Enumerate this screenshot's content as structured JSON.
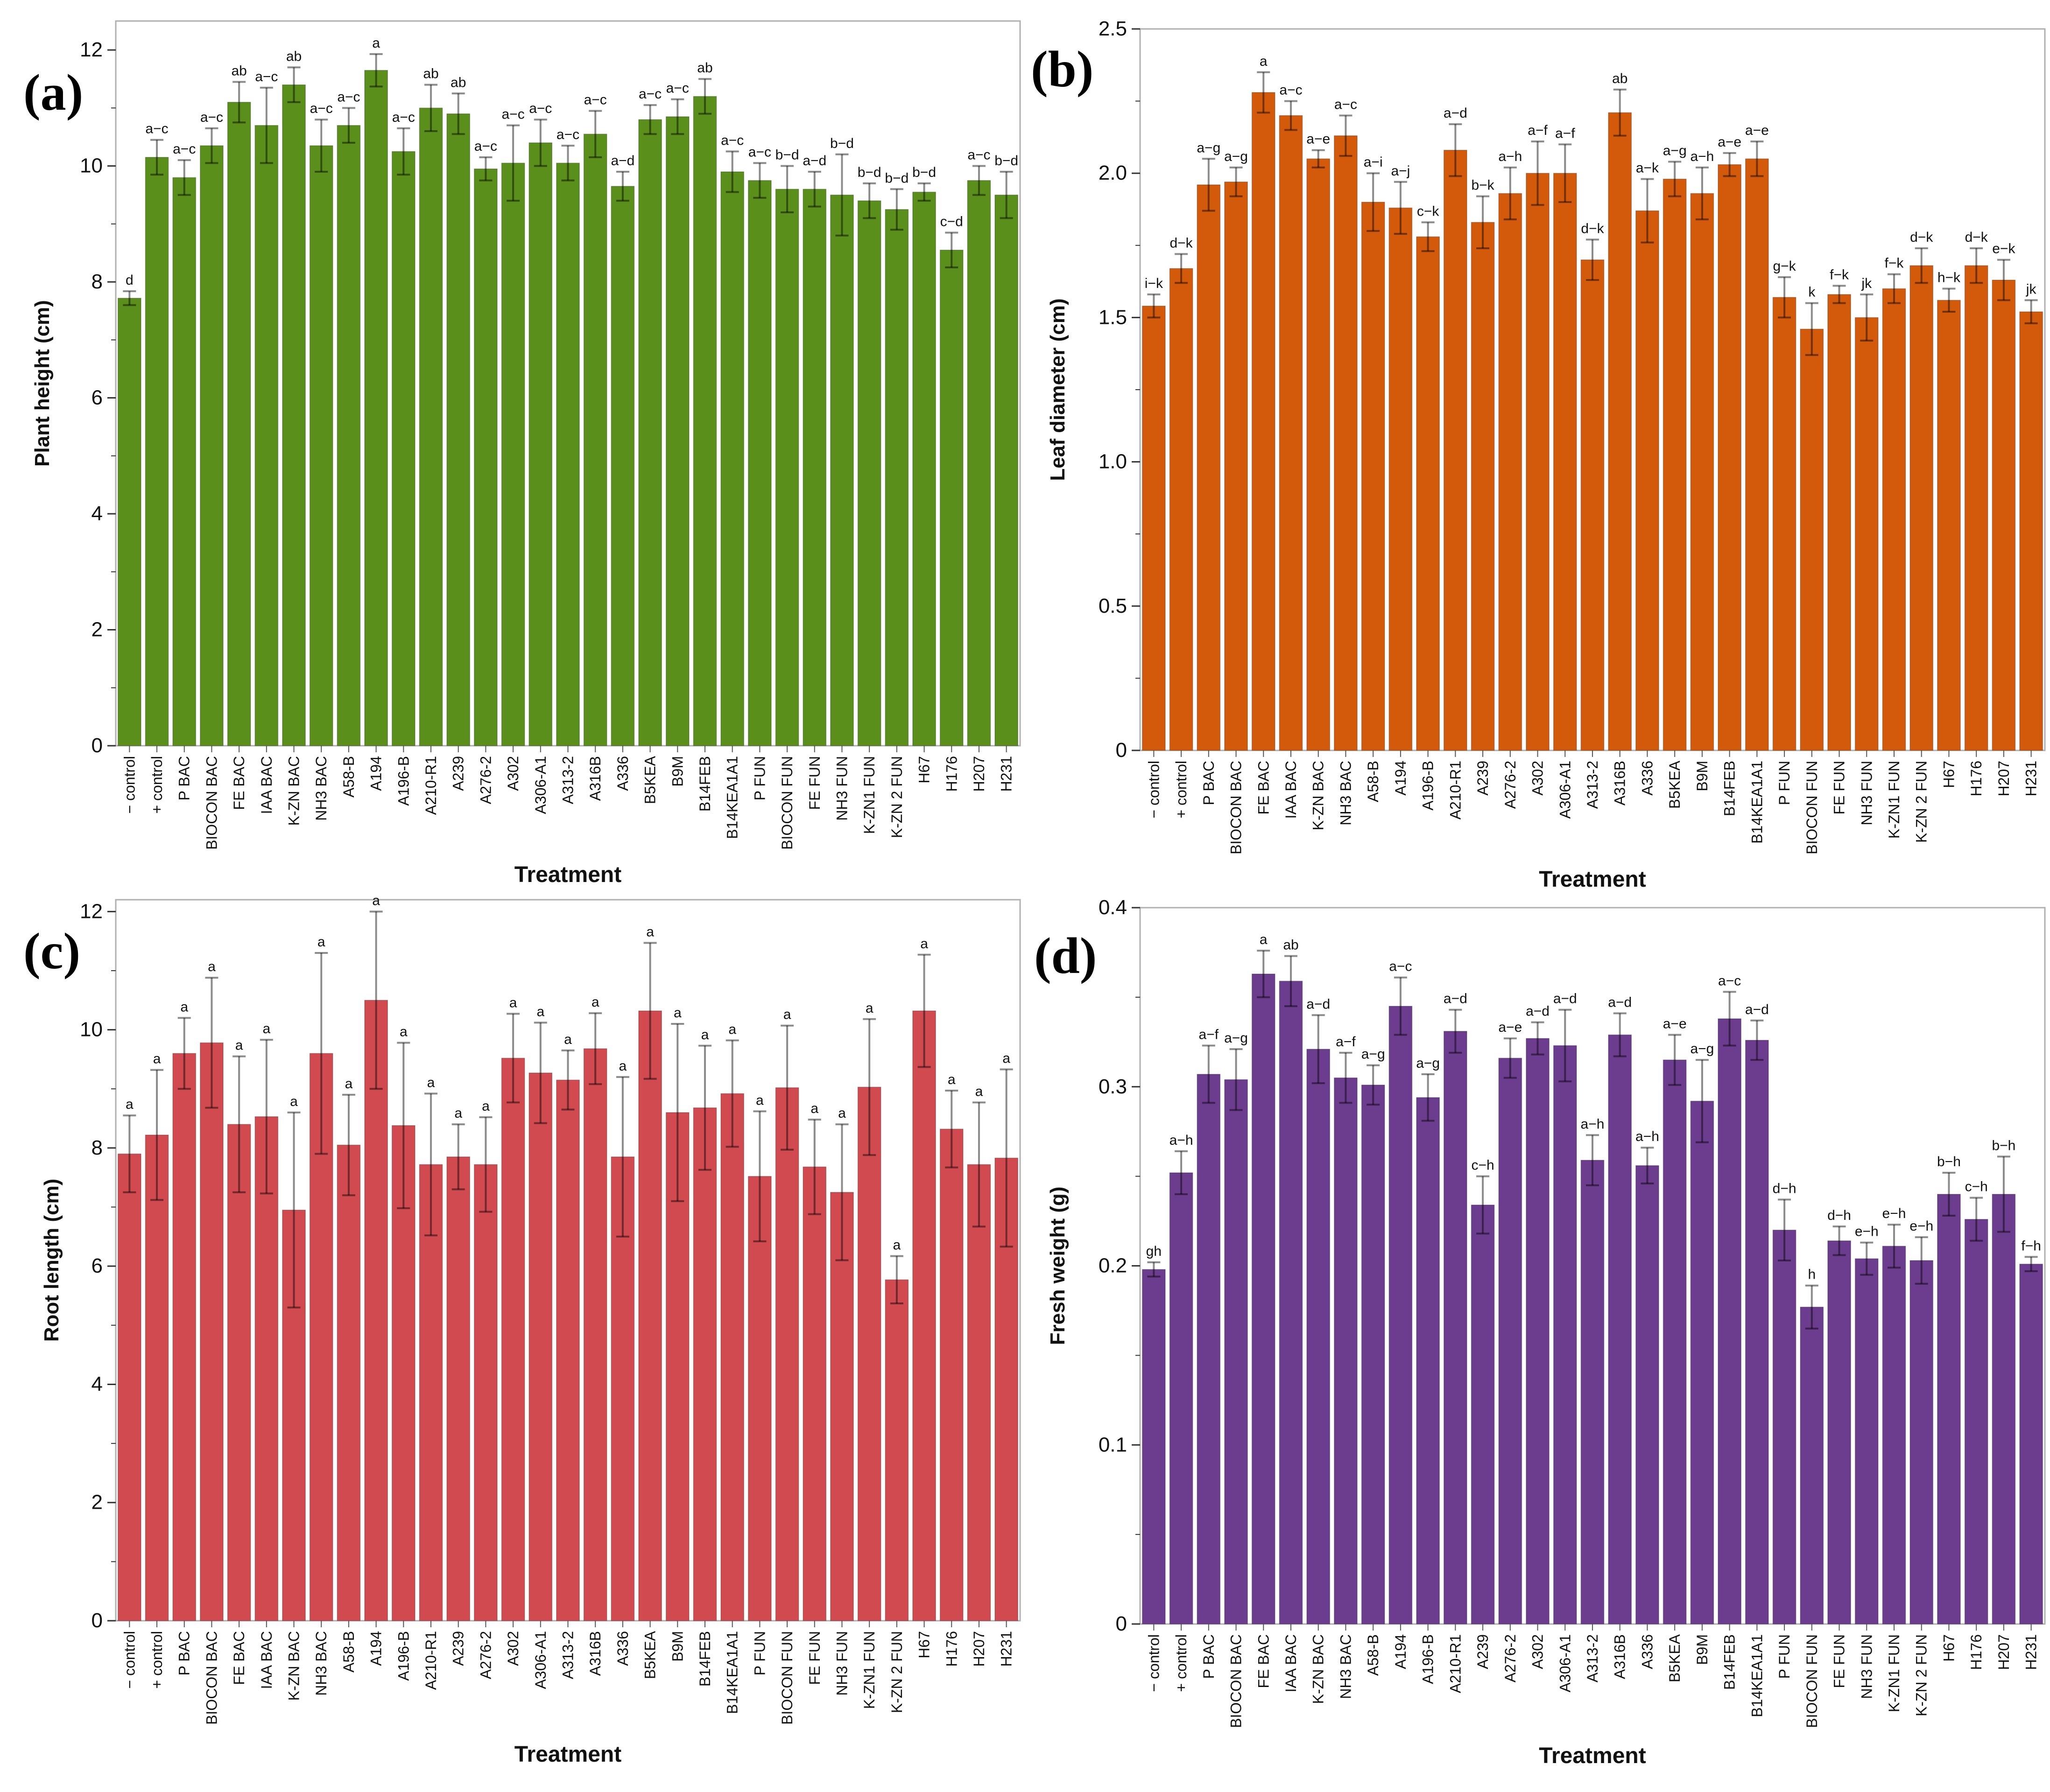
{
  "figure": {
    "treatment_label": "Treatment"
  },
  "chart_data": [
    {
      "type": "bar",
      "panel": "(a)",
      "color": "#5a8f1b",
      "ylabel": "Plant height (cm)",
      "xlabel": "Treatment",
      "ylim": [
        0,
        12.5
      ],
      "yticks": [
        0,
        2,
        4,
        6,
        8,
        10,
        12
      ],
      "ytick_labels": [
        "0",
        "2",
        "4",
        "6",
        "8",
        "10",
        "12"
      ],
      "grid": false,
      "categories": [
        "− control",
        "+ control",
        "P BAC",
        "BIOCON BAC",
        "FE BAC",
        "IAA BAC",
        "K-ZN BAC",
        "NH3 BAC",
        "A58-B",
        "A194",
        "A196-B",
        "A210-R1",
        "A239",
        "A276-2",
        "A302",
        "A306-A1",
        "A313-2",
        "A316B",
        "A336",
        "B5KEA",
        "B9M",
        "B14FEB",
        "B14KEA1A1",
        "P FUN",
        "BIOCON FUN",
        "FE FUN",
        "NH3 FUN",
        "K-ZN1 FUN",
        "K-ZN 2 FUN",
        "H67",
        "H176",
        "H207",
        "H231"
      ],
      "values": [
        7.72,
        10.15,
        9.8,
        10.35,
        11.1,
        10.7,
        11.4,
        10.35,
        10.7,
        11.65,
        10.25,
        11.0,
        10.9,
        9.95,
        10.05,
        10.4,
        10.05,
        10.55,
        9.65,
        10.8,
        10.85,
        11.2,
        9.9,
        9.75,
        9.6,
        9.6,
        9.5,
        9.4,
        9.25,
        9.55,
        8.55,
        9.75,
        9.5
      ],
      "errors": [
        0.12,
        0.3,
        0.3,
        0.3,
        0.35,
        0.65,
        0.3,
        0.45,
        0.3,
        0.28,
        0.4,
        0.4,
        0.35,
        0.2,
        0.65,
        0.4,
        0.3,
        0.4,
        0.25,
        0.25,
        0.3,
        0.3,
        0.35,
        0.3,
        0.4,
        0.3,
        0.7,
        0.3,
        0.35,
        0.15,
        0.3,
        0.25,
        0.4
      ],
      "letters": [
        "d",
        "a−c",
        "a−c",
        "a−c",
        "ab",
        "a−c",
        "ab",
        "a−c",
        "a−c",
        "a",
        "a−c",
        "ab",
        "ab",
        "a−c",
        "a−c",
        "a−c",
        "a−c",
        "a−c",
        "a−d",
        "a−c",
        "a−c",
        "ab",
        "a−c",
        "a−c",
        "b−d",
        "a−d",
        "b−d",
        "b−d",
        "b−d",
        "b−d",
        "c−d",
        "a−c",
        "b−d"
      ]
    },
    {
      "type": "bar",
      "panel": "(b)",
      "color": "#d35a0a",
      "ylabel": "Leaf diameter (cm)",
      "xlabel": "Treatment",
      "ylim": [
        0,
        2.5
      ],
      "yticks": [
        0,
        0.5,
        1.0,
        1.5,
        2.0,
        2.5
      ],
      "ytick_labels": [
        "0",
        "0.5",
        "1.0",
        "1.5",
        "2.0",
        "2.5"
      ],
      "grid": false,
      "categories": [
        "− control",
        "+ control",
        "P BAC",
        "BIOCON BAC",
        "FE BAC",
        "IAA BAC",
        "K-ZN BAC",
        "NH3 BAC",
        "A58-B",
        "A194",
        "A196-B",
        "A210-R1",
        "A239",
        "A276-2",
        "A302",
        "A306-A1",
        "A313-2",
        "A316B",
        "A336",
        "B5KEA",
        "B9M",
        "B14FEB",
        "B14KEA1A1",
        "P FUN",
        "BIOCON FUN",
        "FE FUN",
        "NH3 FUN",
        "K-ZN1 FUN",
        "K-ZN 2 FUN",
        "H67",
        "H176",
        "H207",
        "H231"
      ],
      "values": [
        1.54,
        1.67,
        1.96,
        1.97,
        2.28,
        2.2,
        2.05,
        2.13,
        1.9,
        1.88,
        1.78,
        2.08,
        1.83,
        1.93,
        2.0,
        2.0,
        1.7,
        2.21,
        1.87,
        1.98,
        1.93,
        2.03,
        2.05,
        1.57,
        1.46,
        1.58,
        1.5,
        1.6,
        1.68,
        1.56,
        1.68,
        1.63,
        1.52
      ],
      "errors": [
        0.04,
        0.05,
        0.09,
        0.05,
        0.07,
        0.05,
        0.03,
        0.07,
        0.1,
        0.09,
        0.05,
        0.09,
        0.09,
        0.09,
        0.11,
        0.1,
        0.07,
        0.08,
        0.11,
        0.06,
        0.09,
        0.04,
        0.06,
        0.07,
        0.09,
        0.03,
        0.08,
        0.05,
        0.06,
        0.04,
        0.06,
        0.07,
        0.04
      ],
      "letters": [
        "i−k",
        "d−k",
        "a−g",
        "a−g",
        "a",
        "a−c",
        "a−e",
        "a−c",
        "a−i",
        "a−j",
        "c−k",
        "a−d",
        "b−k",
        "a−h",
        "a−f",
        "a−f",
        "d−k",
        "ab",
        "a−k",
        "a−g",
        "a−h",
        "a−e",
        "a−e",
        "g−k",
        "k",
        "f−k",
        "jk",
        "f−k",
        "d−k",
        "h−k",
        "d−k",
        "e−k",
        "jk"
      ]
    },
    {
      "type": "bar",
      "panel": "(c)",
      "color": "#d04a50",
      "ylabel": "Root length (cm)",
      "xlabel": "Treatment",
      "ylim": [
        0,
        12.2
      ],
      "yticks": [
        0,
        2,
        4,
        6,
        8,
        10,
        12
      ],
      "ytick_labels": [
        "0",
        "2",
        "4",
        "6",
        "8",
        "10",
        "12"
      ],
      "grid": false,
      "categories": [
        "− control",
        "+ control",
        "P BAC",
        "BIOCON BAC",
        "FE BAC",
        "IAA BAC",
        "K-ZN BAC",
        "NH3 BAC",
        "A58-B",
        "A194",
        "A196-B",
        "A210-R1",
        "A239",
        "A276-2",
        "A302",
        "A306-A1",
        "A313-2",
        "A316B",
        "A336",
        "B5KEA",
        "B9M",
        "B14FEB",
        "B14KEA1A1",
        "P FUN",
        "BIOCON FUN",
        "FE FUN",
        "NH3 FUN",
        "K-ZN1 FUN",
        "K-ZN 2 FUN",
        "H67",
        "H176",
        "H207",
        "H231"
      ],
      "values": [
        7.9,
        8.22,
        9.6,
        9.78,
        8.4,
        8.53,
        6.95,
        9.6,
        8.05,
        10.5,
        8.38,
        7.72,
        7.85,
        7.72,
        9.52,
        9.27,
        9.15,
        9.68,
        7.85,
        10.32,
        8.6,
        8.68,
        8.92,
        7.52,
        9.02,
        7.68,
        7.25,
        9.03,
        5.77,
        10.32,
        8.32,
        7.72,
        7.83
      ],
      "errors": [
        0.65,
        1.1,
        0.6,
        1.1,
        1.15,
        1.3,
        1.65,
        1.7,
        0.85,
        1.5,
        1.4,
        1.2,
        0.55,
        0.8,
        0.75,
        0.85,
        0.5,
        0.6,
        1.35,
        1.15,
        1.5,
        1.05,
        0.9,
        1.1,
        1.05,
        0.8,
        1.15,
        1.15,
        0.4,
        0.95,
        0.65,
        1.05,
        1.5
      ],
      "letters": [
        "a",
        "a",
        "a",
        "a",
        "a",
        "a",
        "a",
        "a",
        "a",
        "a",
        "a",
        "a",
        "a",
        "a",
        "a",
        "a",
        "a",
        "a",
        "a",
        "a",
        "a",
        "a",
        "a",
        "a",
        "a",
        "a",
        "a",
        "a",
        "a",
        "a",
        "a",
        "a",
        "a"
      ]
    },
    {
      "type": "bar",
      "panel": "(d)",
      "color": "#6c3d8f",
      "ylabel": "Fresh weight (g)",
      "xlabel": "Treatment",
      "ylim": [
        0,
        0.4
      ],
      "yticks": [
        0,
        0.1,
        0.2,
        0.3,
        0.4
      ],
      "ytick_labels": [
        "0",
        "0.1",
        "0.2",
        "0.3",
        "0.4"
      ],
      "grid": false,
      "categories": [
        "− control",
        "+ control",
        "P BAC",
        "BIOCON BAC",
        "FE BAC",
        "IAA BAC",
        "K-ZN BAC",
        "NH3 BAC",
        "A58-B",
        "A194",
        "A196-B",
        "A210-R1",
        "A239",
        "A276-2",
        "A302",
        "A306-A1",
        "A313-2",
        "A316B",
        "A336",
        "B5KEA",
        "B9M",
        "B14FEB",
        "B14KEA1A1",
        "P FUN",
        "BIOCON FUN",
        "FE FUN",
        "NH3 FUN",
        "K-ZN1 FUN",
        "K-ZN 2 FUN",
        "H67",
        "H176",
        "H207",
        "H231"
      ],
      "values": [
        0.198,
        0.252,
        0.307,
        0.304,
        0.363,
        0.359,
        0.321,
        0.305,
        0.301,
        0.345,
        0.294,
        0.331,
        0.234,
        0.316,
        0.327,
        0.323,
        0.259,
        0.329,
        0.256,
        0.315,
        0.292,
        0.338,
        0.326,
        0.22,
        0.177,
        0.214,
        0.204,
        0.211,
        0.203,
        0.24,
        0.226,
        0.24,
        0.201
      ],
      "errors": [
        0.004,
        0.012,
        0.016,
        0.017,
        0.013,
        0.014,
        0.019,
        0.014,
        0.011,
        0.016,
        0.013,
        0.012,
        0.016,
        0.011,
        0.009,
        0.02,
        0.014,
        0.012,
        0.01,
        0.014,
        0.023,
        0.015,
        0.011,
        0.017,
        0.012,
        0.008,
        0.009,
        0.012,
        0.013,
        0.012,
        0.012,
        0.021,
        0.004
      ],
      "letters": [
        "gh",
        "a−h",
        "a−f",
        "a−g",
        "a",
        "ab",
        "a−d",
        "a−f",
        "a−g",
        "a−c",
        "a−g",
        "a−d",
        "c−h",
        "a−e",
        "a−d",
        "a−d",
        "a−h",
        "a−d",
        "a−h",
        "a−e",
        "a−g",
        "a−c",
        "a−d",
        "d−h",
        "h",
        "d−h",
        "e−h",
        "e−h",
        "e−h",
        "b−h",
        "c−h",
        "b−h",
        "f−h"
      ]
    }
  ]
}
